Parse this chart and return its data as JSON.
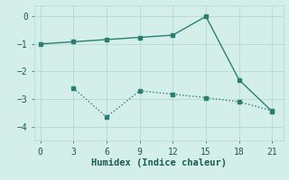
{
  "line1_x": [
    0,
    3,
    6,
    9,
    12,
    15,
    18,
    21
  ],
  "line1_y": [
    -1.0,
    -0.92,
    -0.84,
    -0.76,
    -0.68,
    0.0,
    -2.3,
    -3.45
  ],
  "line2_x": [
    3,
    6,
    9,
    12,
    15,
    18,
    21
  ],
  "line2_y": [
    -2.6,
    -3.65,
    -2.7,
    -2.82,
    -2.95,
    -3.1,
    -3.42
  ],
  "color": "#2a7f72",
  "bg_color": "#d4eeea",
  "grid_color": "#b8d8d2",
  "xlabel": "Humidex (Indice chaleur)",
  "xlim": [
    -0.5,
    22
  ],
  "ylim": [
    -4.5,
    0.4
  ],
  "xticks": [
    0,
    3,
    6,
    9,
    12,
    15,
    18,
    21
  ],
  "yticks": [
    -4,
    -3,
    -2,
    -1,
    0
  ],
  "marker": "s",
  "marker_size": 2.5,
  "line1_style": "solid",
  "line2_style": "dotted",
  "linewidth": 1.0,
  "font_color": "#1a5c52",
  "xlabel_fontsize": 7.5,
  "tick_fontsize": 7
}
